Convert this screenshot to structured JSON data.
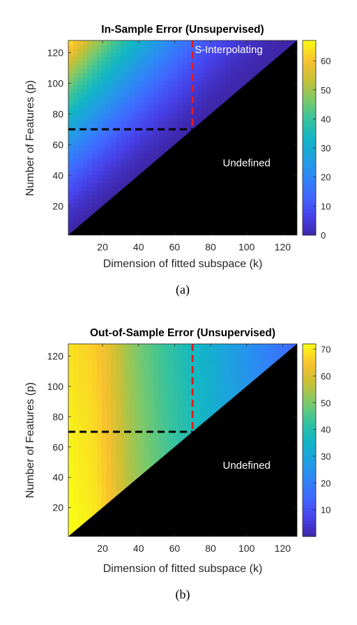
{
  "chart_data": [
    {
      "type": "heatmap",
      "id": "a",
      "title": "In-Sample Error (Unsupervised)",
      "xlabel": "Dimension of fitted subspace (k)",
      "ylabel": "Number of Features (p)",
      "xlim": [
        1,
        128
      ],
      "ylim": [
        1,
        128
      ],
      "xticks": [
        20,
        40,
        60,
        80,
        100,
        120
      ],
      "yticks": [
        20,
        40,
        60,
        80,
        100,
        120
      ],
      "colorbar": {
        "min": 0,
        "max": 67,
        "ticks": [
          0,
          10,
          20,
          30,
          40,
          50,
          60
        ]
      },
      "colormap": "parula",
      "undefined_region": "k > p",
      "field": {
        "peak_value": 65,
        "peak_at": [
          1,
          128
        ],
        "min_value": 0,
        "min_at": "k = p",
        "description": "error grows with p - k"
      },
      "reference_lines": [
        {
          "orientation": "vertical",
          "at_k": 70,
          "color": "#e8191e",
          "dashed": true
        },
        {
          "orientation": "horizontal",
          "at_p": 70,
          "color": "#000000",
          "dashed": true
        }
      ],
      "annotations": [
        {
          "text": "S-Interpolating",
          "at": [
            90,
            122
          ]
        },
        {
          "text": "Undefined",
          "at": [
            100,
            48
          ]
        }
      ],
      "caption": "(a)"
    },
    {
      "type": "heatmap",
      "id": "b",
      "title": "Out-of-Sample Error (Unsupervised)",
      "xlabel": "Dimension of fitted subspace (k)",
      "ylabel": "Number of Features (p)",
      "xlim": [
        1,
        128
      ],
      "ylim": [
        1,
        128
      ],
      "xticks": [
        20,
        40,
        60,
        80,
        100,
        120
      ],
      "yticks": [
        20,
        40,
        60,
        80,
        100,
        120
      ],
      "colorbar": {
        "min": 0,
        "max": 72,
        "ticks": [
          10,
          20,
          30,
          40,
          50,
          60,
          70
        ]
      },
      "colormap": "parula",
      "undefined_region": "k > p",
      "field": {
        "max_value": 72,
        "max_at_k": 1,
        "min_value": 5,
        "min_at": [
          128,
          128
        ],
        "description": "error decreases as k grows"
      },
      "reference_lines": [
        {
          "orientation": "vertical",
          "at_k": 70,
          "color": "#e8191e",
          "dashed": true
        },
        {
          "orientation": "horizontal",
          "at_p": 70,
          "color": "#000000",
          "dashed": true
        }
      ],
      "annotations": [
        {
          "text": "Undefined",
          "at": [
            100,
            48
          ]
        }
      ],
      "caption": "(b)"
    }
  ]
}
